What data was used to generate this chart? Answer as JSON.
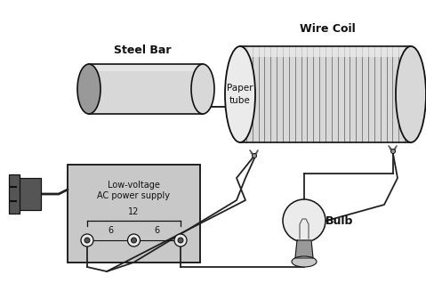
{
  "bg_color": "#ffffff",
  "label_steel_bar": "Steel Bar",
  "label_wire_coil": "Wire Coil",
  "label_paper_tube": "Paper\ntube",
  "label_bulb": "Bulb",
  "label_ps1": "Low-voltage",
  "label_ps2": "AC power supply",
  "label_12": "12",
  "label_6l": "6",
  "label_6r": "6",
  "gray_dark": "#555555",
  "gray_mid": "#999999",
  "gray_light": "#c8c8c8",
  "gray_lighter": "#d8d8d8",
  "gray_lightest": "#ebebeb",
  "black": "#111111",
  "wire_color": "#222222",
  "fs_bold": 9,
  "fs_small": 7
}
